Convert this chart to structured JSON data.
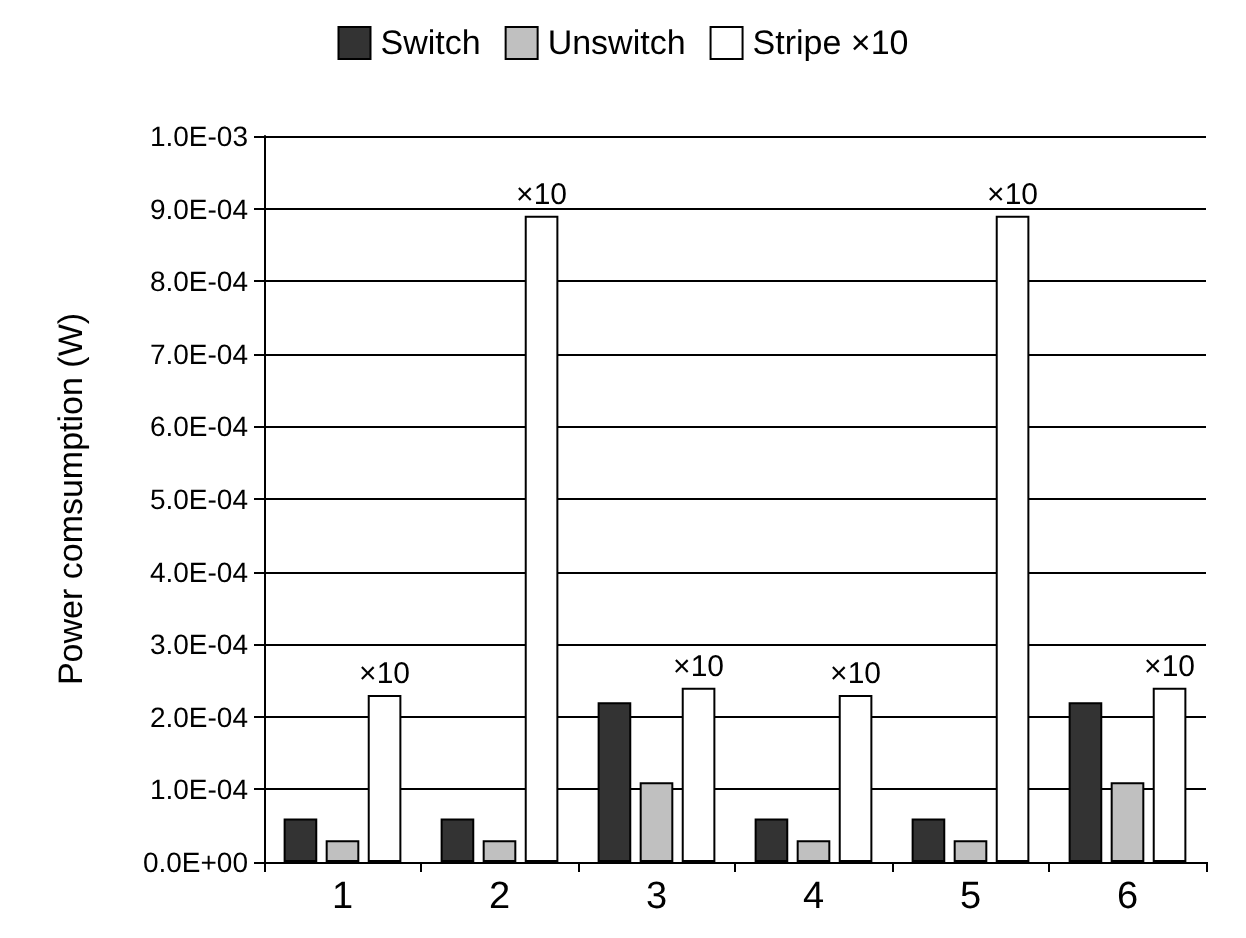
{
  "chart_data": {
    "type": "bar",
    "ylabel": "Power comsumption (W)",
    "categories": [
      "1",
      "2",
      "3",
      "4",
      "5",
      "6"
    ],
    "series": [
      {
        "name": "Switch",
        "color": "#333333",
        "values": [
          6e-05,
          6e-05,
          0.00022,
          6e-05,
          6e-05,
          0.00022
        ]
      },
      {
        "name": "Unswitch",
        "color": "#c0c0c0",
        "values": [
          3e-05,
          3e-05,
          0.00011,
          3e-05,
          3e-05,
          0.00011
        ]
      },
      {
        "name": "Stripe ×10",
        "color": "#ffffff",
        "values": [
          0.00023,
          0.00089,
          0.00024,
          0.00023,
          0.00089,
          0.00024
        ]
      }
    ],
    "ylim": [
      0,
      0.001
    ],
    "yticks": [
      {
        "value": 0,
        "label": "0.0E+00"
      },
      {
        "value": 0.0001,
        "label": "1.0E-04"
      },
      {
        "value": 0.0002,
        "label": "2.0E-04"
      },
      {
        "value": 0.0003,
        "label": "3.0E-04"
      },
      {
        "value": 0.0004,
        "label": "4.0E-04"
      },
      {
        "value": 0.0005,
        "label": "5.0E-04"
      },
      {
        "value": 0.0006,
        "label": "6.0E-04"
      },
      {
        "value": 0.0007,
        "label": "7.0E-04"
      },
      {
        "value": 0.0008,
        "label": "8.0E-04"
      },
      {
        "value": 0.0009,
        "label": "9.0E-04"
      },
      {
        "value": 0.001,
        "label": "1.0E-03"
      }
    ],
    "annotations": [
      "×10",
      "×10",
      "×10",
      "×10",
      "×10",
      "×10"
    ],
    "grid": "y",
    "legend": "top"
  }
}
